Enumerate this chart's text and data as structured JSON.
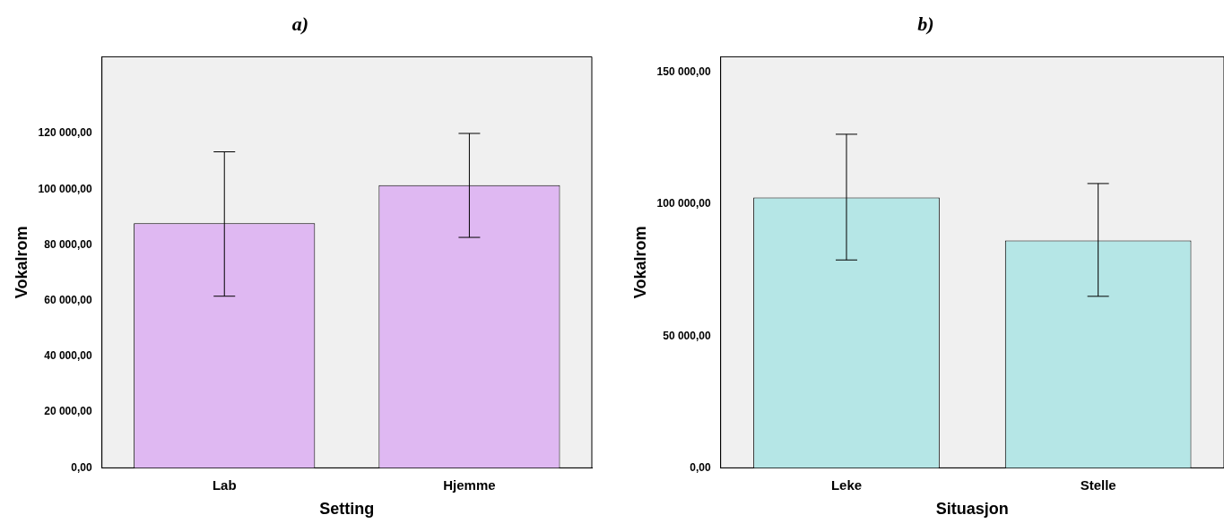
{
  "chart_data": [
    {
      "type": "bar",
      "title": "a)",
      "xlabel": "Setting",
      "ylabel": "Vokalrom",
      "categories": [
        "Lab",
        "Hjemme"
      ],
      "values": [
        87800,
        101400
      ],
      "errors": [
        [
          61600,
          113400
        ],
        [
          82700,
          120000
        ]
      ],
      "color": "#dfb8f2",
      "ylim": [
        0,
        147500
      ],
      "yticks": [
        {
          "value": 0,
          "label": "0,00"
        },
        {
          "value": 20000,
          "label": "20 000,00"
        },
        {
          "value": 40000,
          "label": "40 000,00"
        },
        {
          "value": 60000,
          "label": "60 000,00"
        },
        {
          "value": 80000,
          "label": "80 000,00"
        },
        {
          "value": 100000,
          "label": "100 000,00"
        },
        {
          "value": 120000,
          "label": "120 000,00"
        }
      ],
      "grid": false,
      "legend": false
    },
    {
      "type": "bar",
      "title": "b)",
      "xlabel": "Situasjon",
      "ylabel": "Vokalrom",
      "categories": [
        "Leke",
        "Stelle"
      ],
      "values": [
        102600,
        86300
      ],
      "errors": [
        [
          78900,
          126600
        ],
        [
          65100,
          107900
        ]
      ],
      "color": "#b5e6e6",
      "ylim": [
        0,
        156000
      ],
      "yticks": [
        {
          "value": 0,
          "label": "0,00"
        },
        {
          "value": 50000,
          "label": "50 000,00"
        },
        {
          "value": 100000,
          "label": "100 000,00"
        },
        {
          "value": 150000,
          "label": "150 000,00"
        }
      ],
      "grid": false,
      "legend": false
    }
  ]
}
